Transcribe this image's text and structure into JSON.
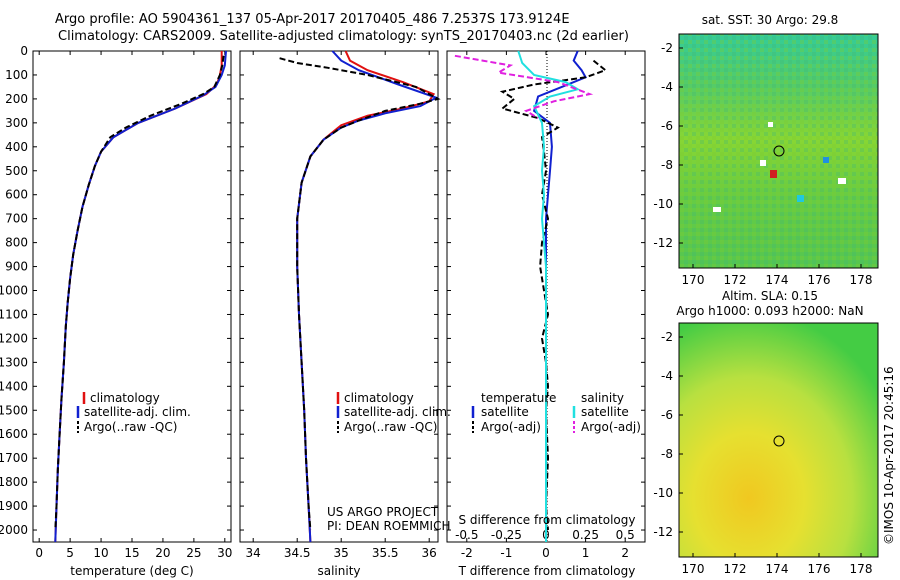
{
  "header": {
    "title_line1": "Argo profile: AO 5904361_137 05-Apr-2017 20170405_486 7.2537S 173.9124E",
    "title_line2": "Climatology: CARS2009. Satellite-adjusted climatology: synTS_20170403.nc (2d earlier)"
  },
  "colors": {
    "climatology": "#e01010",
    "satellite": "#1020d0",
    "argo": "#000000",
    "cyan": "#20e0e0",
    "magenta": "#e020e0"
  },
  "chart_data": [
    {
      "type": "line",
      "name": "temperature-panel",
      "xlabel": "temperature (deg C)",
      "ylabel": "",
      "xlim": [
        -1,
        31
      ],
      "ylim": [
        2050,
        0
      ],
      "xticks": [
        0,
        5,
        10,
        15,
        20,
        25,
        30
      ],
      "yticks": [
        0,
        100,
        200,
        300,
        400,
        500,
        600,
        700,
        800,
        900,
        1000,
        1100,
        1200,
        1300,
        1400,
        1500,
        1600,
        1700,
        1800,
        1900,
        2000
      ],
      "legend": [
        "climatology",
        "satellite-adj. clim.",
        "Argo(..raw -QC)"
      ],
      "series": [
        {
          "name": "climatology",
          "color": "climatology",
          "points": [
            [
              29.5,
              0
            ],
            [
              29.5,
              60
            ],
            [
              29.2,
              100
            ],
            [
              28.7,
              140
            ],
            [
              27,
              180
            ],
            [
              22,
              240
            ],
            [
              16,
              300
            ],
            [
              12,
              360
            ],
            [
              10,
              420
            ],
            [
              9,
              480
            ],
            [
              8,
              560
            ],
            [
              7,
              650
            ],
            [
              6.2,
              750
            ],
            [
              5.5,
              850
            ],
            [
              5,
              950
            ],
            [
              4.6,
              1050
            ],
            [
              4.3,
              1150
            ],
            [
              4,
              1300
            ],
            [
              3.6,
              1450
            ],
            [
              3.3,
              1600
            ],
            [
              3,
              1750
            ],
            [
              2.8,
              1900
            ],
            [
              2.6,
              2050
            ]
          ]
        },
        {
          "name": "satellite-adj. clim.",
          "color": "satellite",
          "points": [
            [
              30.2,
              0
            ],
            [
              30,
              60
            ],
            [
              29.5,
              100
            ],
            [
              28.5,
              150
            ],
            [
              26.5,
              185
            ],
            [
              22,
              240
            ],
            [
              16,
              300
            ],
            [
              12,
              360
            ],
            [
              10,
              420
            ],
            [
              9,
              480
            ],
            [
              8,
              560
            ],
            [
              7,
              650
            ],
            [
              6.2,
              750
            ],
            [
              5.5,
              850
            ],
            [
              5,
              950
            ],
            [
              4.6,
              1050
            ],
            [
              4.3,
              1150
            ],
            [
              4,
              1300
            ],
            [
              3.6,
              1450
            ],
            [
              3.3,
              1600
            ],
            [
              3,
              1750
            ],
            [
              2.8,
              1900
            ],
            [
              2.6,
              2050
            ]
          ]
        },
        {
          "name": "Argo(..raw -QC)",
          "color": "argo",
          "dashed": true,
          "points": [
            [
              29.8,
              20
            ],
            [
              29.6,
              60
            ],
            [
              29.2,
              100
            ],
            [
              28.3,
              150
            ],
            [
              26.5,
              180
            ],
            [
              23,
              220
            ],
            [
              18,
              270
            ],
            [
              14,
              320
            ],
            [
              11.5,
              360
            ],
            [
              10,
              420
            ],
            [
              9,
              480
            ],
            [
              8,
              560
            ],
            [
              7,
              650
            ],
            [
              6.2,
              750
            ],
            [
              5.5,
              850
            ],
            [
              5,
              950
            ],
            [
              4.6,
              1050
            ],
            [
              4.3,
              1150
            ],
            [
              4,
              1300
            ],
            [
              3.6,
              1450
            ],
            [
              3.3,
              1600
            ],
            [
              3,
              1750
            ],
            [
              2.8,
              1900
            ],
            [
              2.6,
              2000
            ]
          ]
        }
      ]
    },
    {
      "type": "line",
      "name": "salinity-panel",
      "xlabel": "salinity",
      "xlim": [
        33.85,
        36.1
      ],
      "ylim": [
        2050,
        0
      ],
      "xticks": [
        34,
        34.5,
        35,
        35.5,
        36
      ],
      "xtick_labels": [
        "34",
        "34.5",
        "35",
        "35.5",
        "36"
      ],
      "legend": [
        "climatology",
        "satellite-adj. clim.",
        "Argo(..raw -QC)"
      ],
      "series": [
        {
          "name": "climatology",
          "color": "climatology",
          "points": [
            [
              35.05,
              0
            ],
            [
              35.1,
              40
            ],
            [
              35.3,
              80
            ],
            [
              35.7,
              130
            ],
            [
              36.05,
              180
            ],
            [
              36,
              210
            ],
            [
              35.7,
              240
            ],
            [
              35.3,
              270
            ],
            [
              35,
              310
            ],
            [
              34.8,
              370
            ],
            [
              34.65,
              440
            ],
            [
              34.55,
              550
            ],
            [
              34.5,
              700
            ],
            [
              34.5,
              900
            ],
            [
              34.52,
              1100
            ],
            [
              34.55,
              1300
            ],
            [
              34.58,
              1500
            ],
            [
              34.6,
              1700
            ],
            [
              34.63,
              1900
            ],
            [
              34.65,
              2050
            ]
          ]
        },
        {
          "name": "satellite-adj. clim.",
          "color": "satellite",
          "points": [
            [
              34.9,
              0
            ],
            [
              35,
              40
            ],
            [
              35.2,
              80
            ],
            [
              35.65,
              140
            ],
            [
              36.08,
              195
            ],
            [
              35.9,
              230
            ],
            [
              35.5,
              260
            ],
            [
              35.2,
              290
            ],
            [
              35,
              320
            ],
            [
              34.8,
              370
            ],
            [
              34.65,
              440
            ],
            [
              34.55,
              550
            ],
            [
              34.5,
              700
            ],
            [
              34.5,
              900
            ],
            [
              34.52,
              1100
            ],
            [
              34.55,
              1300
            ],
            [
              34.58,
              1500
            ],
            [
              34.6,
              1700
            ],
            [
              34.63,
              1900
            ],
            [
              34.65,
              2050
            ]
          ]
        },
        {
          "name": "Argo(..raw -QC)",
          "color": "argo",
          "dashed": true,
          "points": [
            [
              34.3,
              30
            ],
            [
              34.5,
              50
            ],
            [
              34.85,
              70
            ],
            [
              35.3,
              100
            ],
            [
              35.85,
              150
            ],
            [
              36.1,
              200
            ],
            [
              35.9,
              220
            ],
            [
              35.5,
              250
            ],
            [
              35.2,
              290
            ],
            [
              35,
              320
            ],
            [
              34.8,
              370
            ],
            [
              34.65,
              440
            ],
            [
              34.55,
              550
            ],
            [
              34.5,
              700
            ],
            [
              34.5,
              900
            ],
            [
              34.52,
              1100
            ],
            [
              34.55,
              1300
            ],
            [
              34.58,
              1500
            ],
            [
              34.6,
              1700
            ],
            [
              34.63,
              1900
            ],
            [
              34.65,
              2000
            ]
          ]
        }
      ],
      "annotation": [
        "US ARGO PROJECT",
        "PI: DEAN ROEMMICH"
      ]
    },
    {
      "type": "line",
      "name": "difference-panel",
      "xlabel": "T difference from climatology",
      "xlabel_top": "S difference from climatology",
      "xlim": [
        -2.5,
        2.5
      ],
      "ylim": [
        2050,
        0
      ],
      "xticks": [
        -2,
        -1,
        0,
        1,
        2
      ],
      "s_ticks_labels": [
        "-0.5",
        "-0.25",
        "0",
        "0.25",
        "0.5"
      ],
      "legend_temperature_title": "temperature",
      "legend_salinity_title": "salinity",
      "legend": [
        "satellite",
        "Argo(-adj)",
        "satellite",
        "Argo(-adj)"
      ],
      "series": [
        {
          "name": "T satellite",
          "color": "satellite",
          "points": [
            [
              0.8,
              0
            ],
            [
              0.7,
              40
            ],
            [
              0.9,
              80
            ],
            [
              1.0,
              110
            ],
            [
              0.4,
              150
            ],
            [
              -0.2,
              190
            ],
            [
              -0.3,
              250
            ],
            [
              0.1,
              300
            ],
            [
              0.15,
              400
            ],
            [
              0.1,
              500
            ],
            [
              0.05,
              600
            ],
            [
              0,
              700
            ],
            [
              0,
              800
            ],
            [
              0,
              900
            ],
            [
              0,
              1000
            ],
            [
              0,
              1200
            ],
            [
              0,
              1500
            ],
            [
              0,
              1800
            ],
            [
              0,
              2050
            ]
          ]
        },
        {
          "name": "T Argo(-adj)",
          "color": "argo",
          "dashed": true,
          "points": [
            [
              1.2,
              40
            ],
            [
              1.5,
              80
            ],
            [
              1.0,
              110
            ],
            [
              -0.3,
              140
            ],
            [
              -1.1,
              170
            ],
            [
              -0.8,
              200
            ],
            [
              -1.1,
              240
            ],
            [
              -0.2,
              280
            ],
            [
              0.3,
              320
            ],
            [
              -0.1,
              360
            ],
            [
              -0.05,
              420
            ],
            [
              0,
              500
            ],
            [
              -0.1,
              600
            ],
            [
              0.05,
              700
            ],
            [
              -0.1,
              800
            ],
            [
              -0.15,
              900
            ],
            [
              -0.05,
              1000
            ],
            [
              0.05,
              1100
            ],
            [
              -0.1,
              1200
            ],
            [
              0,
              1300
            ],
            [
              0.05,
              1400
            ],
            [
              0,
              1500
            ],
            [
              0.05,
              1700
            ],
            [
              0,
              1900
            ],
            [
              0.05,
              2000
            ]
          ]
        },
        {
          "name": "S satellite",
          "color": "cyan",
          "points": [
            [
              -0.7,
              0
            ],
            [
              -0.6,
              50
            ],
            [
              -0.3,
              100
            ],
            [
              0.5,
              130
            ],
            [
              0.8,
              160
            ],
            [
              0.1,
              190
            ],
            [
              -0.3,
              230
            ],
            [
              -0.1,
              300
            ],
            [
              -0.05,
              400
            ],
            [
              -0.1,
              500
            ],
            [
              -0.05,
              600
            ],
            [
              -0.1,
              700
            ],
            [
              -0.05,
              800
            ],
            [
              0,
              900
            ],
            [
              0,
              1100
            ],
            [
              0,
              1400
            ],
            [
              0,
              1700
            ],
            [
              0,
              2050
            ]
          ]
        },
        {
          "name": "S Argo(-adj)",
          "color": "magenta",
          "dashed": true,
          "points": [
            [
              -2.3,
              20
            ],
            [
              -1.6,
              40
            ],
            [
              -0.9,
              60
            ],
            [
              -1.2,
              90
            ],
            [
              0.3,
              130
            ],
            [
              1.1,
              180
            ],
            [
              0.2,
              210
            ],
            [
              -0.5,
              250
            ],
            [
              -0.2,
              280
            ]
          ]
        }
      ]
    }
  ],
  "maps": {
    "sst": {
      "title": "sat. SST: 30 Argo: 29.8",
      "xticks": [
        "170",
        "172",
        "174",
        "176",
        "178"
      ],
      "yticks": [
        "-2",
        "-4",
        "-6",
        "-8",
        "-10",
        "-12"
      ]
    },
    "sla": {
      "title_line1": "Altim. SLA: 0.15",
      "title_line2": "Argo h1000: 0.093 h2000: NaN",
      "xticks": [
        "170",
        "172",
        "174",
        "176",
        "178"
      ],
      "yticks": [
        "-2",
        "-4",
        "-6",
        "-8",
        "-10",
        "-12"
      ]
    },
    "credit": "©IMOS 10-Apr-2017 20:45:16"
  }
}
